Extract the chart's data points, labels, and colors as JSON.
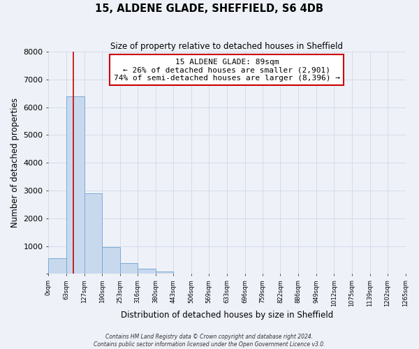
{
  "title": "15, ALDENE GLADE, SHEFFIELD, S6 4DB",
  "subtitle": "Size of property relative to detached houses in Sheffield",
  "xlabel": "Distribution of detached houses by size in Sheffield",
  "ylabel": "Number of detached properties",
  "bin_edges": [
    0,
    63,
    127,
    190,
    253,
    316,
    380,
    443,
    506,
    569,
    633,
    696,
    759,
    822,
    886,
    949,
    1012,
    1075,
    1139,
    1202,
    1265
  ],
  "bin_labels": [
    "0sqm",
    "63sqm",
    "127sqm",
    "190sqm",
    "253sqm",
    "316sqm",
    "380sqm",
    "443sqm",
    "506sqm",
    "569sqm",
    "633sqm",
    "696sqm",
    "759sqm",
    "822sqm",
    "886sqm",
    "949sqm",
    "1012sqm",
    "1075sqm",
    "1139sqm",
    "1202sqm",
    "1265sqm"
  ],
  "bar_heights": [
    550,
    6400,
    2900,
    970,
    380,
    175,
    95,
    0,
    0,
    0,
    0,
    0,
    0,
    0,
    0,
    0,
    0,
    0,
    0,
    0
  ],
  "bar_color": "#c8d9ee",
  "bar_edge_color": "#7aaad4",
  "property_line_x": 89,
  "property_line_color": "#cc0000",
  "annotation_text": "15 ALDENE GLADE: 89sqm\n← 26% of detached houses are smaller (2,901)\n74% of semi-detached houses are larger (8,396) →",
  "annotation_box_color": "#ffffff",
  "annotation_box_edge": "#cc0000",
  "ylim": [
    0,
    8000
  ],
  "yticks": [
    0,
    1000,
    2000,
    3000,
    4000,
    5000,
    6000,
    7000,
    8000
  ],
  "grid_color": "#d0d8e8",
  "background_color": "#eef1f8",
  "footer_line1": "Contains HM Land Registry data © Crown copyright and database right 2024.",
  "footer_line2": "Contains public sector information licensed under the Open Government Licence v3.0."
}
